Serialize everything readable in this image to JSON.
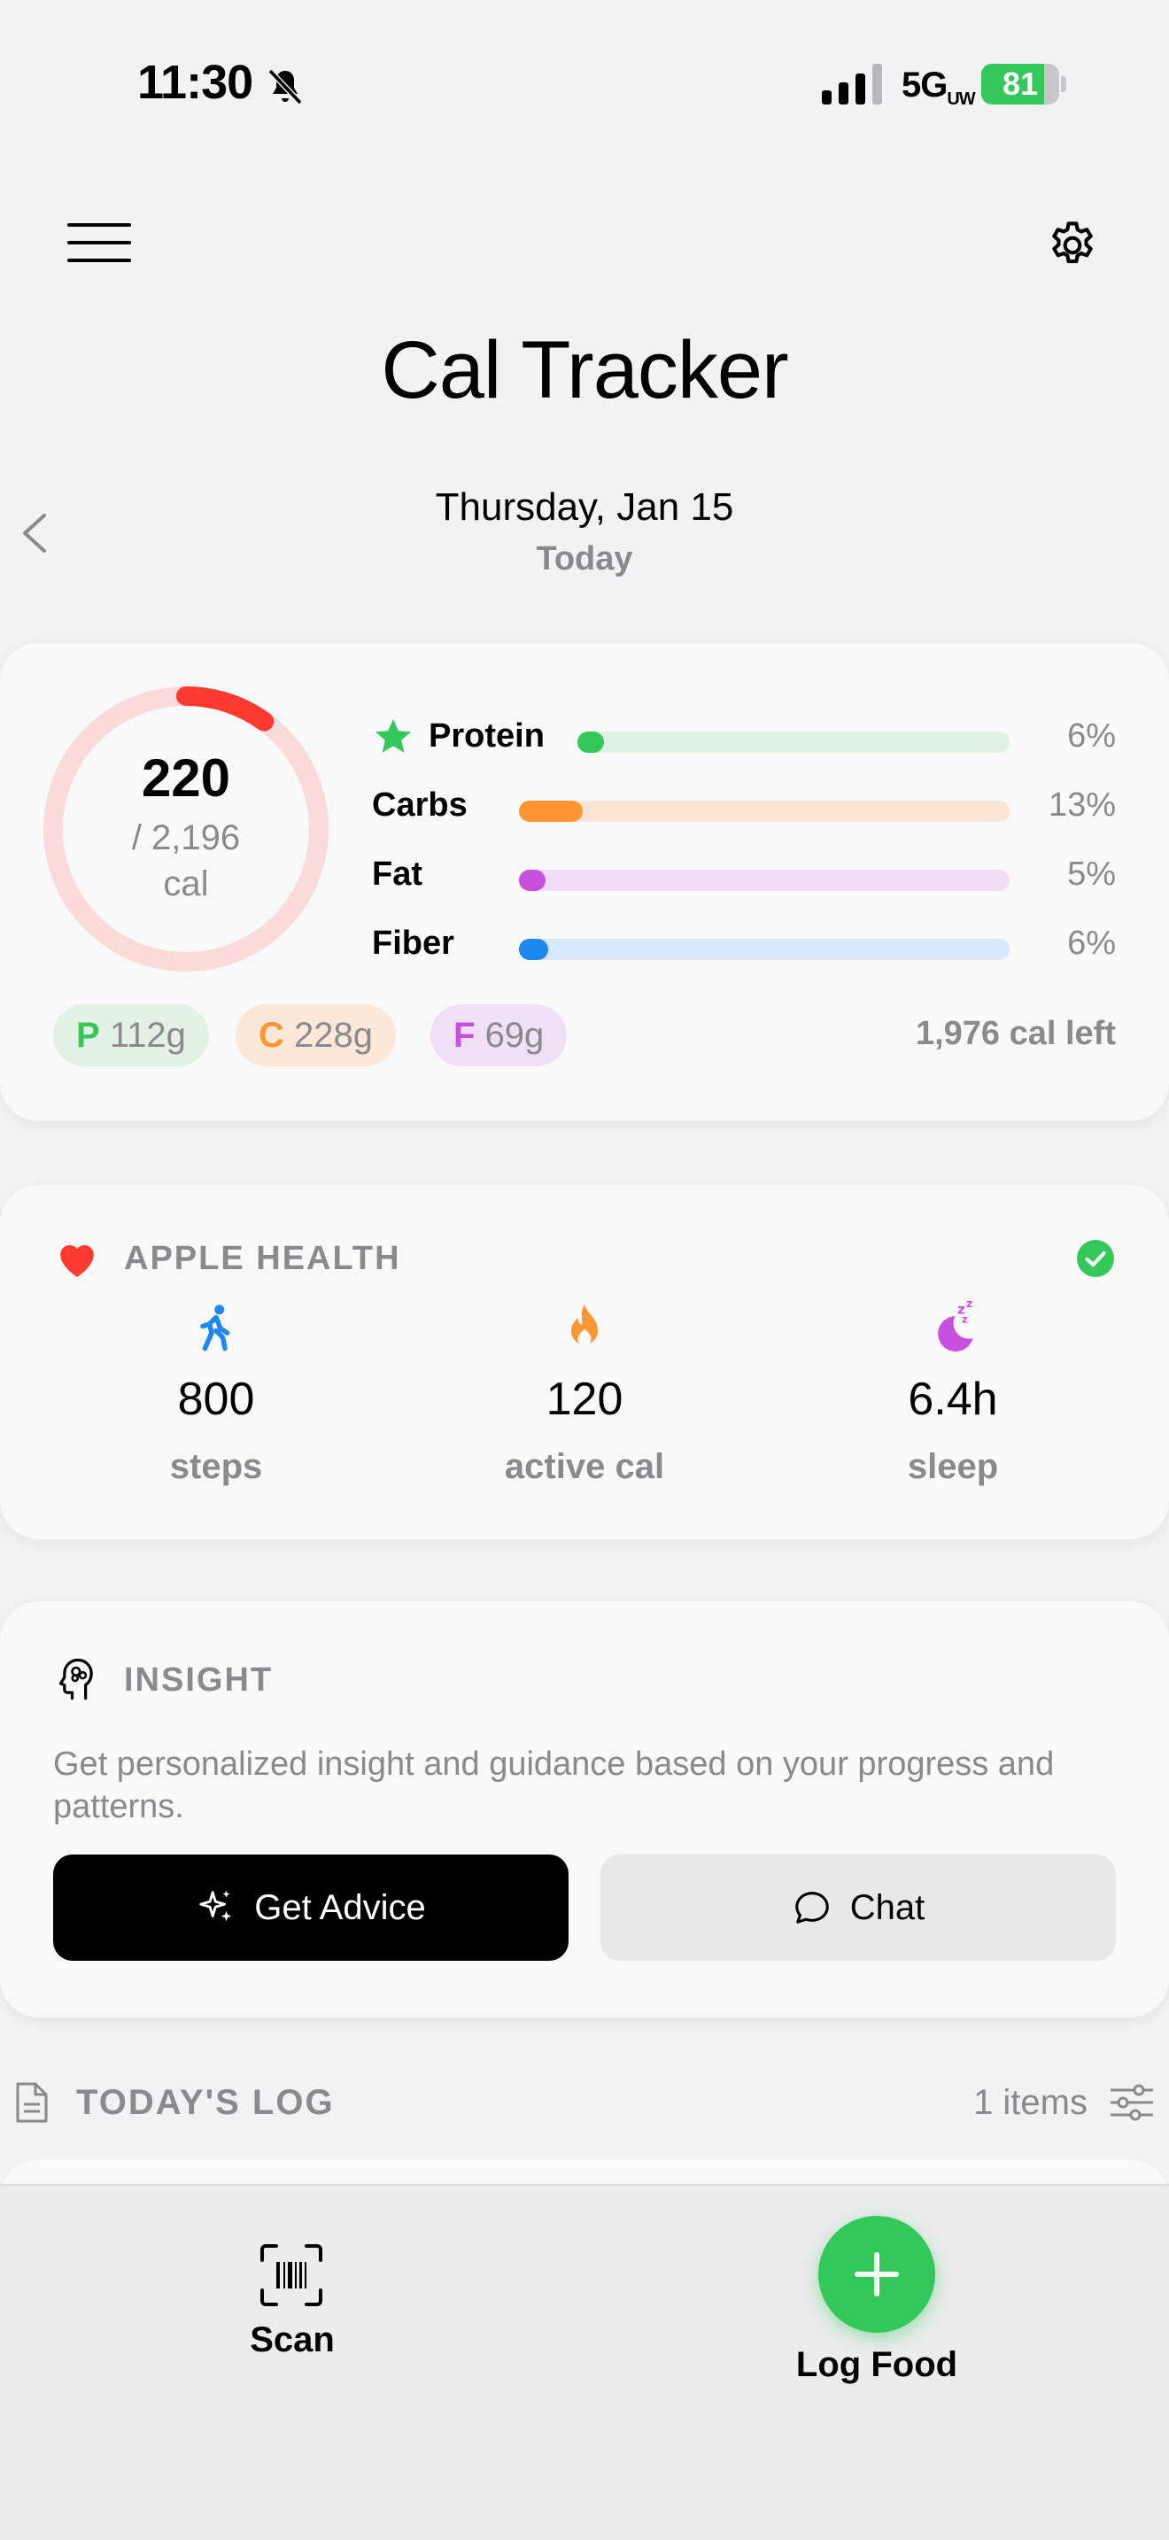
{
  "status_bar": {
    "time": "11:30",
    "network": "5G",
    "network_suffix": "UW",
    "battery": "81",
    "battery_level": 0.81,
    "icons": [
      "bell-slash-icon",
      "signal-icon",
      "battery-icon"
    ]
  },
  "header": {
    "title": "Cal Tracker",
    "date": "Thursday, Jan 15",
    "date_sub": "Today",
    "icons": [
      "menu-icon",
      "gear-icon",
      "chevron-left-icon"
    ]
  },
  "calories": {
    "consumed": "220",
    "goal": "/ 2,196",
    "unit": "cal",
    "progress": 0.1,
    "remaining": "1,976 cal left",
    "ring_color": "#ff3b30",
    "macros": [
      {
        "name": "Protein",
        "pct": "6%",
        "value": 0.06,
        "color": "#34c759",
        "track": "#dff3e3",
        "starred": true
      },
      {
        "name": "Carbs",
        "pct": "13%",
        "value": 0.13,
        "color": "#ff9533",
        "track": "#fbe6d6"
      },
      {
        "name": "Fat",
        "pct": "5%",
        "value": 0.05,
        "color": "#c94fe0",
        "track": "#f0dcf6"
      },
      {
        "name": "Fiber",
        "pct": "6%",
        "value": 0.06,
        "color": "#1e88f0",
        "track": "#d8e8fb"
      }
    ],
    "pills": [
      {
        "letter": "P",
        "value": "112g",
        "color": "#34c759",
        "bg": "#e2f1e4"
      },
      {
        "letter": "C",
        "value": "228g",
        "color": "#ff9533",
        "bg": "#fbe8d9"
      },
      {
        "letter": "F",
        "value": "69g",
        "color": "#c94fe0",
        "bg": "#f1e0f5"
      }
    ]
  },
  "health": {
    "title": "APPLE HEALTH",
    "metrics": [
      {
        "value": "800",
        "label": "steps",
        "icon": "walk-icon",
        "color": "#1e88f0"
      },
      {
        "value": "120",
        "label": "active cal",
        "icon": "flame-icon",
        "color": "#ff9533"
      },
      {
        "value": "6.4h",
        "label": "sleep",
        "icon": "moon-icon",
        "color": "#c94fe0"
      }
    ]
  },
  "insight": {
    "title": "INSIGHT",
    "description": "Get personalized insight and guidance based on your progress and patterns.",
    "advice_button": "Get Advice",
    "chat_button": "Chat"
  },
  "log": {
    "title": "TODAY'S LOG",
    "count": "1 items"
  },
  "bottom_bar": {
    "scan_label": "Scan",
    "log_food_label": "Log Food",
    "fab_color": "#34c759"
  }
}
